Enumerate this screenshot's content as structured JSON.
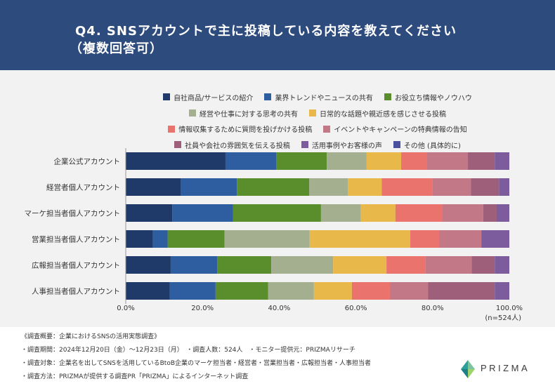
{
  "header": {
    "title": "Q4. SNSアカウントで主に投稿している内容を教えてください",
    "subtitle": "（複数回答可）",
    "background": "#2e4b7d"
  },
  "chart_data": {
    "type": "bar",
    "orientation": "horizontal",
    "stacked": true,
    "categories": [
      "企業公式アカウント",
      "経営者個人アカウント",
      "マーケ担当者個人アカウント",
      "営業担当者個人アカウント",
      "広報担当者個人アカウント",
      "人事担当者個人アカウント"
    ],
    "series": [
      {
        "name": "自社商品/サービスの紹介",
        "color": "#1f3a68",
        "values": [
          26.0,
          14.3,
          12.1,
          7.1,
          11.7,
          11.5
        ]
      },
      {
        "name": "業界トレンドやニュースの共有",
        "color": "#2e5e9f",
        "values": [
          13.2,
          14.7,
          15.9,
          3.8,
          12.1,
          11.9
        ]
      },
      {
        "name": "お役立ち情報やノウハウ",
        "color": "#5a8d2b",
        "values": [
          13.2,
          18.9,
          22.9,
          14.8,
          14.1,
          13.7
        ]
      },
      {
        "name": "経営や仕事に対する思考の共有",
        "color": "#a3af8e",
        "values": [
          10.4,
          10.1,
          10.4,
          22.2,
          16.1,
          11.9
        ]
      },
      {
        "name": "日常的な話題や親近感を感じさせる投稿",
        "color": "#e8b84b",
        "values": [
          9.0,
          8.8,
          9.0,
          26.2,
          13.9,
          9.9
        ]
      },
      {
        "name": "情報収集するために質問を投げかける投稿",
        "color": "#eb736e",
        "values": [
          6.6,
          13.2,
          12.3,
          7.5,
          10.1,
          9.9
        ]
      },
      {
        "name": "イベントやキャンペーンの特典情報の告知",
        "color": "#c27886",
        "values": [
          10.8,
          10.1,
          10.6,
          11.0,
          12.1,
          9.9
        ]
      },
      {
        "name": "社員や会社の雰囲気を伝える投稿",
        "color": "#9e5f7a",
        "values": [
          7.0,
          7.3,
          3.5,
          0.0,
          6.0,
          17.4
        ]
      },
      {
        "name": "活用事例やお客様の声",
        "color": "#7c5c9c",
        "values": [
          3.8,
          2.7,
          3.3,
          7.3,
          3.8,
          3.8
        ]
      },
      {
        "name": "その他 (具体的に)",
        "color": "#4b4fa0",
        "values": [
          0,
          0,
          0,
          0,
          0,
          0
        ]
      }
    ],
    "xlim": [
      0,
      100
    ],
    "xticks": [
      0,
      20,
      40,
      60,
      80,
      100
    ],
    "xtick_labels": [
      "0.0%",
      "20.0%",
      "40.0%",
      "60.0%",
      "80.0%",
      "100.0%"
    ],
    "note": "(n=524人)",
    "legend_position": "top",
    "grid": false
  },
  "footer": {
    "title": "《調査概要：企業におけるSNSの活用実態調査》",
    "lines": [
      "・調査期間：2024年12月20日（金）～12月23日（月）　・調査人数：524人　・モニター提供元：PRIZMAリサーチ",
      "・調査対象：企業名を出してSNSを活用しているBtoB企業のマーケ担当者・経営者・営業担当者・広報担当者・人事担当者",
      "・調査方法：PRIZMAが提供する調査PR「PRIZMA」によるインターネット調査"
    ]
  },
  "brand": {
    "name": "PRIZMA",
    "icon": "prizma-logo-icon"
  }
}
